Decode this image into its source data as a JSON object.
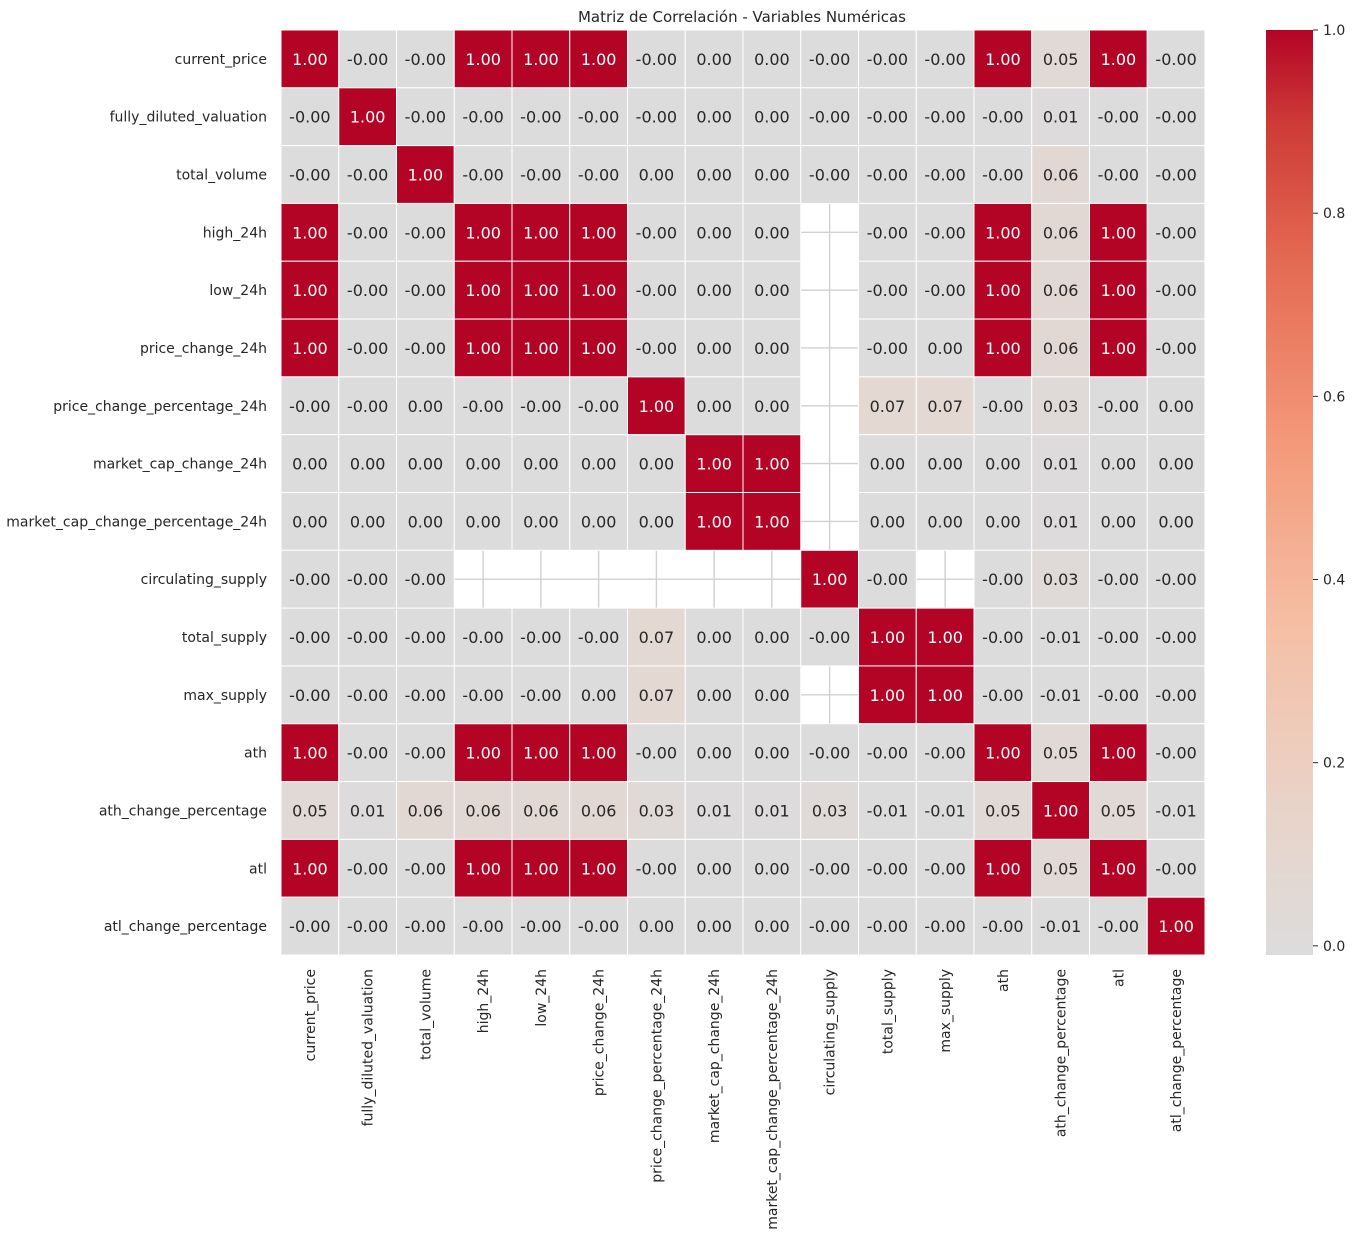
{
  "chart_data": {
    "type": "heatmap",
    "title": "Matriz de Correlación - Variables Numéricas",
    "variables": [
      "current_price",
      "fully_diluted_valuation",
      "total_volume",
      "high_24h",
      "low_24h",
      "price_change_24h",
      "price_change_percentage_24h",
      "market_cap_change_24h",
      "market_cap_change_percentage_24h",
      "circulating_supply",
      "total_supply",
      "max_supply",
      "ath",
      "ath_change_percentage",
      "atl",
      "atl_change_percentage"
    ],
    "matrix": [
      [
        "1.00",
        "-0.00",
        "-0.00",
        "1.00",
        "1.00",
        "1.00",
        "-0.00",
        "0.00",
        "0.00",
        "-0.00",
        "-0.00",
        "-0.00",
        "1.00",
        "0.05",
        "1.00",
        "-0.00"
      ],
      [
        "-0.00",
        "1.00",
        "-0.00",
        "-0.00",
        "-0.00",
        "-0.00",
        "-0.00",
        "0.00",
        "0.00",
        "-0.00",
        "-0.00",
        "-0.00",
        "-0.00",
        "0.01",
        "-0.00",
        "-0.00"
      ],
      [
        "-0.00",
        "-0.00",
        "1.00",
        "-0.00",
        "-0.00",
        "-0.00",
        "0.00",
        "0.00",
        "0.00",
        "-0.00",
        "-0.00",
        "-0.00",
        "-0.00",
        "0.06",
        "-0.00",
        "-0.00"
      ],
      [
        "1.00",
        "-0.00",
        "-0.00",
        "1.00",
        "1.00",
        "1.00",
        "-0.00",
        "0.00",
        "0.00",
        null,
        "-0.00",
        "-0.00",
        "1.00",
        "0.06",
        "1.00",
        "-0.00"
      ],
      [
        "1.00",
        "-0.00",
        "-0.00",
        "1.00",
        "1.00",
        "1.00",
        "-0.00",
        "0.00",
        "0.00",
        null,
        "-0.00",
        "-0.00",
        "1.00",
        "0.06",
        "1.00",
        "-0.00"
      ],
      [
        "1.00",
        "-0.00",
        "-0.00",
        "1.00",
        "1.00",
        "1.00",
        "-0.00",
        "0.00",
        "0.00",
        null,
        "-0.00",
        "0.00",
        "1.00",
        "0.06",
        "1.00",
        "-0.00"
      ],
      [
        "-0.00",
        "-0.00",
        "0.00",
        "-0.00",
        "-0.00",
        "-0.00",
        "1.00",
        "0.00",
        "0.00",
        null,
        "0.07",
        "0.07",
        "-0.00",
        "0.03",
        "-0.00",
        "0.00"
      ],
      [
        "0.00",
        "0.00",
        "0.00",
        "0.00",
        "0.00",
        "0.00",
        "0.00",
        "1.00",
        "1.00",
        null,
        "0.00",
        "0.00",
        "0.00",
        "0.01",
        "0.00",
        "0.00"
      ],
      [
        "0.00",
        "0.00",
        "0.00",
        "0.00",
        "0.00",
        "0.00",
        "0.00",
        "1.00",
        "1.00",
        null,
        "0.00",
        "0.00",
        "0.00",
        "0.01",
        "0.00",
        "0.00"
      ],
      [
        "-0.00",
        "-0.00",
        "-0.00",
        null,
        null,
        null,
        null,
        null,
        null,
        "1.00",
        "-0.00",
        null,
        "-0.00",
        "0.03",
        "-0.00",
        "-0.00"
      ],
      [
        "-0.00",
        "-0.00",
        "-0.00",
        "-0.00",
        "-0.00",
        "-0.00",
        "0.07",
        "0.00",
        "0.00",
        "-0.00",
        "1.00",
        "1.00",
        "-0.00",
        "-0.01",
        "-0.00",
        "-0.00"
      ],
      [
        "-0.00",
        "-0.00",
        "-0.00",
        "-0.00",
        "-0.00",
        "0.00",
        "0.07",
        "0.00",
        "0.00",
        null,
        "1.00",
        "1.00",
        "-0.00",
        "-0.01",
        "-0.00",
        "-0.00"
      ],
      [
        "1.00",
        "-0.00",
        "-0.00",
        "1.00",
        "1.00",
        "1.00",
        "-0.00",
        "0.00",
        "0.00",
        "-0.00",
        "-0.00",
        "-0.00",
        "1.00",
        "0.05",
        "1.00",
        "-0.00"
      ],
      [
        "0.05",
        "0.01",
        "0.06",
        "0.06",
        "0.06",
        "0.06",
        "0.03",
        "0.01",
        "0.01",
        "0.03",
        "-0.01",
        "-0.01",
        "0.05",
        "1.00",
        "0.05",
        "-0.01"
      ],
      [
        "1.00",
        "-0.00",
        "-0.00",
        "1.00",
        "1.00",
        "1.00",
        "-0.00",
        "0.00",
        "0.00",
        "-0.00",
        "-0.00",
        "-0.00",
        "1.00",
        "0.05",
        "1.00",
        "-0.00"
      ],
      [
        "-0.00",
        "-0.00",
        "-0.00",
        "-0.00",
        "-0.00",
        "-0.00",
        "0.00",
        "0.00",
        "0.00",
        "-0.00",
        "-0.00",
        "-0.00",
        "-0.00",
        "-0.01",
        "-0.00",
        "1.00"
      ]
    ],
    "colorbar": {
      "ticks": [
        "0.0",
        "0.2",
        "0.4",
        "0.6",
        "0.8",
        "1.0"
      ],
      "tick_values": [
        0.0,
        0.2,
        0.4,
        0.6,
        0.8,
        1.0
      ],
      "vmin": -0.01,
      "vmax": 1.0
    },
    "colormap": "coolwarm (centered at 0)",
    "colors": {
      "zero": "#dcdcdc",
      "low": "#e6d5cc",
      "high": "#b40426",
      "missing": "#ffffff",
      "grid": "#ffffff",
      "text_dark": "#262626",
      "text_light": "#ffffff"
    }
  }
}
